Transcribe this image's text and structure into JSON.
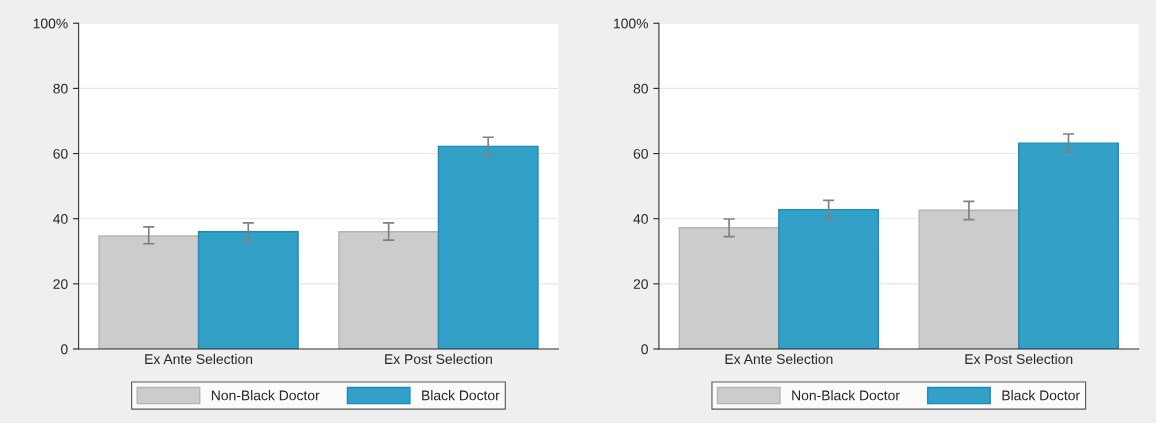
{
  "chart_data": [
    {
      "type": "bar",
      "categories": [
        "Ex Ante Selection",
        "Ex Post Selection"
      ],
      "series": [
        {
          "name": "Non-Black Doctor",
          "color": "#cccccc",
          "values": [
            34.7,
            36.0
          ],
          "errors": [
            [
              32.3,
              37.5
            ],
            [
              33.4,
              38.7
            ]
          ]
        },
        {
          "name": "Black Doctor",
          "color": "#33a0c8",
          "values": [
            36.0,
            62.2
          ],
          "errors": [
            [
              33.3,
              38.7
            ],
            [
              59.4,
              65.0
            ]
          ]
        }
      ],
      "ylim": [
        0,
        100
      ],
      "yticks": [
        0,
        20,
        40,
        60,
        80,
        {
          "value": 100,
          "label": "100%"
        }
      ],
      "grid": "y",
      "legend": "bottom"
    },
    {
      "type": "bar",
      "categories": [
        "Ex Ante Selection",
        "Ex Post Selection"
      ],
      "series": [
        {
          "name": "Non-Black Doctor",
          "color": "#cccccc",
          "values": [
            37.2,
            42.6
          ],
          "errors": [
            [
              34.5,
              39.9
            ],
            [
              39.7,
              45.3
            ]
          ]
        },
        {
          "name": "Black Doctor",
          "color": "#33a0c8",
          "values": [
            42.8,
            63.2
          ],
          "errors": [
            [
              39.9,
              45.6
            ],
            [
              60.4,
              66.0
            ]
          ]
        }
      ],
      "ylim": [
        0,
        100
      ],
      "yticks": [
        0,
        20,
        40,
        60,
        80,
        {
          "value": 100,
          "label": "100%"
        }
      ],
      "grid": "y",
      "legend": "bottom"
    }
  ]
}
